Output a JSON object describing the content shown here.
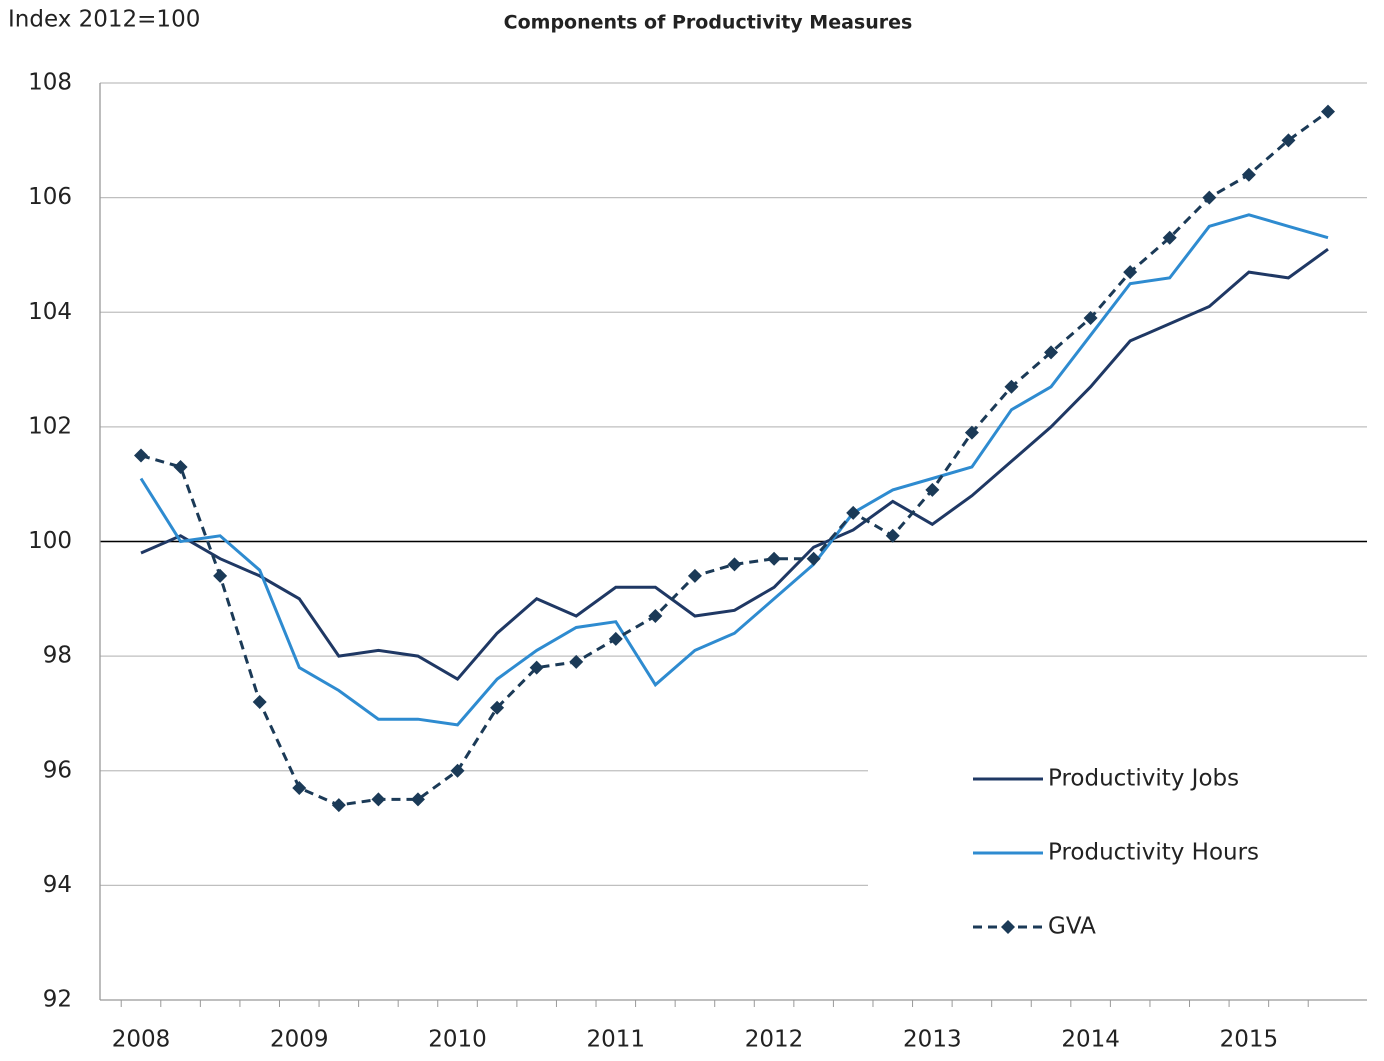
{
  "chart_data": {
    "type": "line",
    "title": "Components of Productivity Measures",
    "y_label": "Index 2012=100",
    "categories": [
      "2008",
      null,
      null,
      null,
      "2009",
      null,
      null,
      null,
      "2010",
      null,
      null,
      null,
      "2011",
      null,
      null,
      null,
      "2012",
      null,
      null,
      null,
      "2013",
      null,
      null,
      null,
      "2014",
      null,
      null,
      null,
      "2015",
      null,
      null
    ],
    "series": [
      {
        "name": "Productivity Jobs",
        "color": "#1f3864",
        "dash": false,
        "marker": false,
        "values": [
          99.8,
          100.1,
          99.7,
          99.4,
          99.0,
          98.0,
          98.1,
          98.0,
          97.6,
          98.4,
          99.0,
          98.7,
          99.2,
          99.2,
          98.7,
          98.8,
          99.2,
          99.9,
          100.2,
          100.7,
          100.3,
          100.8,
          101.4,
          102.0,
          102.7,
          103.5,
          103.8,
          104.1,
          104.7,
          104.6,
          105.1
        ]
      },
      {
        "name": "Productivity Hours",
        "color": "#2e8bd0",
        "dash": false,
        "marker": false,
        "values": [
          101.1,
          100.0,
          100.1,
          99.5,
          97.8,
          97.4,
          96.9,
          96.9,
          96.8,
          97.6,
          98.1,
          98.5,
          98.6,
          97.5,
          98.1,
          98.4,
          99.0,
          99.6,
          100.5,
          100.9,
          101.1,
          101.3,
          102.3,
          102.7,
          103.6,
          104.5,
          104.6,
          105.5,
          105.7,
          105.5,
          105.3
        ]
      },
      {
        "name": "GVA",
        "color": "#1b3a57",
        "dash": true,
        "marker": true,
        "values": [
          101.5,
          101.3,
          99.4,
          97.2,
          95.7,
          95.4,
          95.5,
          95.5,
          96.0,
          97.1,
          97.8,
          97.9,
          98.3,
          98.7,
          99.4,
          99.6,
          99.7,
          99.7,
          100.5,
          100.1,
          100.9,
          101.9,
          102.7,
          103.3,
          103.9,
          104.7,
          105.3,
          106.0,
          106.4,
          107.0,
          107.5
        ]
      }
    ],
    "ylim": [
      92,
      108
    ],
    "yticks": [
      92,
      94,
      96,
      98,
      100,
      102,
      104,
      106,
      108
    ],
    "reference_line": 100,
    "grid": true,
    "legend": "bottom-right"
  }
}
